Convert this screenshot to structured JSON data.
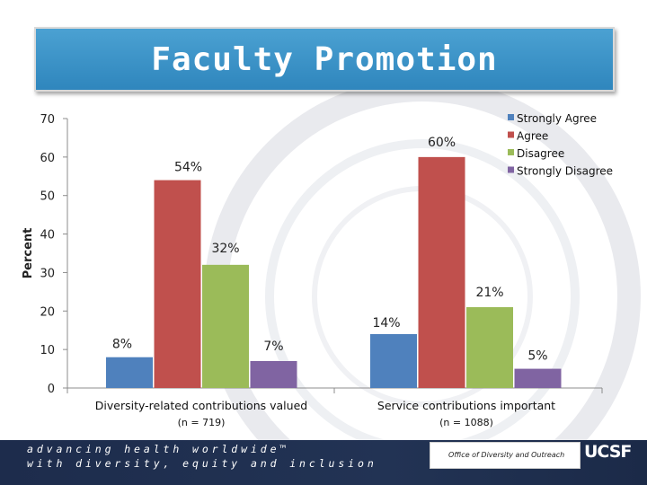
{
  "title": "Faculty Promotion",
  "chart_data": {
    "type": "bar",
    "ylabel": "Percent",
    "ylim": [
      0,
      70
    ],
    "yticks": [
      0,
      10,
      20,
      30,
      40,
      50,
      60,
      70
    ],
    "groups": [
      {
        "label": "Diversity-related contributions valued",
        "n_label": "(n = 719)"
      },
      {
        "label": "Service contributions important",
        "n_label": "(n = 1088)"
      }
    ],
    "series": [
      {
        "name": "Strongly Agree",
        "color": "#4f81bd",
        "values": [
          8,
          14
        ],
        "labels": [
          "8%",
          "14%"
        ]
      },
      {
        "name": "Agree",
        "color": "#c0504d",
        "values": [
          54,
          60
        ],
        "labels": [
          "54%",
          "60%"
        ]
      },
      {
        "name": "Disagree",
        "color": "#9bbb59",
        "values": [
          32,
          21
        ],
        "labels": [
          "32%",
          "21%"
        ]
      },
      {
        "name": "Strongly Disagree",
        "color": "#8064a2",
        "values": [
          7,
          5
        ],
        "labels": [
          "7%",
          "5%"
        ]
      }
    ],
    "legend_position": "top-right",
    "grid": false
  },
  "footer": {
    "line1": "advancing health worldwide™",
    "line2": "with diversity, equity and inclusion",
    "office": "Office of Diversity and Outreach",
    "logo": "UCSF"
  }
}
